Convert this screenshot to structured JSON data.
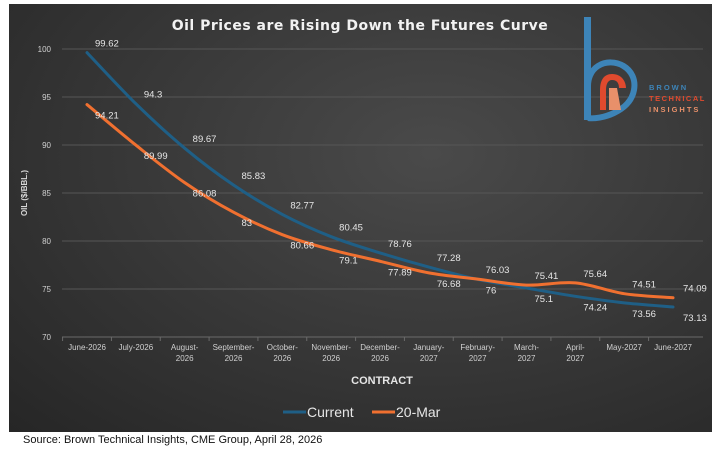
{
  "chart_data": {
    "type": "line",
    "title": "Oil Prices are Rising Down the Futures Curve",
    "xlabel": "CONTRACT",
    "ylabel": "OIL ($/BBL.)",
    "ylim": [
      70,
      100
    ],
    "yticks": [
      70,
      75,
      80,
      85,
      90,
      95,
      100
    ],
    "grid": true,
    "legend": "bottom",
    "categories": [
      "June-2026",
      "July-2026",
      "August-2026",
      "September-2026",
      "October-2026",
      "November-2026",
      "December-2026",
      "January-2027",
      "February-2027",
      "March-2027",
      "April-2027",
      "May-2027",
      "June-2027"
    ],
    "series": [
      {
        "name": "Current",
        "color": "#1f5f86",
        "values": [
          99.62,
          94.3,
          89.67,
          85.83,
          82.77,
          80.45,
          78.76,
          77.28,
          76.0,
          75.1,
          74.24,
          73.56,
          73.13
        ]
      },
      {
        "name": "20-Mar",
        "color": "#f07030",
        "values": [
          94.21,
          89.99,
          86.08,
          83,
          80.66,
          79.1,
          77.89,
          76.68,
          76.03,
          75.41,
          75.64,
          74.51,
          74.09
        ]
      }
    ]
  },
  "logo": {
    "line1": "BROWN",
    "line2": "TECHNICAL",
    "line3": "INSIGHTS"
  },
  "source": "Source: Brown Technical Insights, CME Group, April 28, 2026"
}
